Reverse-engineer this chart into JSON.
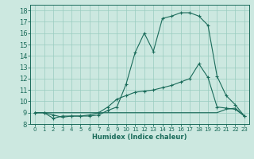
{
  "xlabel": "Humidex (Indice chaleur)",
  "xlim": [
    -0.5,
    23.5
  ],
  "ylim": [
    8,
    18.5
  ],
  "xticks": [
    0,
    1,
    2,
    3,
    4,
    5,
    6,
    7,
    8,
    9,
    10,
    11,
    12,
    13,
    14,
    15,
    16,
    17,
    18,
    19,
    20,
    21,
    22,
    23
  ],
  "yticks": [
    8,
    9,
    10,
    11,
    12,
    13,
    14,
    15,
    16,
    17,
    18
  ],
  "bg_color": "#cce8e0",
  "grid_color": "#99ccc0",
  "line_color": "#1a6b5a",
  "line1_x": [
    0,
    1,
    2,
    3,
    4,
    5,
    6,
    7,
    8,
    9,
    10,
    11,
    12,
    13,
    14,
    15,
    16,
    17,
    18,
    19,
    20,
    21,
    22,
    23
  ],
  "line1_y": [
    9.0,
    9.0,
    8.8,
    8.6,
    8.7,
    8.7,
    8.7,
    8.8,
    9.2,
    9.5,
    11.5,
    14.3,
    16.0,
    14.4,
    17.3,
    17.5,
    17.8,
    17.8,
    17.5,
    16.7,
    12.2,
    10.5,
    9.7,
    8.7
  ],
  "line2_x": [
    0,
    1,
    2,
    3,
    4,
    5,
    6,
    7,
    8,
    9,
    10,
    11,
    12,
    13,
    14,
    15,
    16,
    17,
    18,
    19,
    20,
    21,
    22,
    23
  ],
  "line2_y": [
    9.0,
    9.0,
    8.5,
    8.7,
    8.7,
    8.7,
    8.8,
    9.0,
    9.5,
    10.2,
    10.5,
    10.8,
    10.9,
    11.0,
    11.2,
    11.4,
    11.7,
    12.0,
    13.3,
    12.1,
    9.5,
    9.4,
    9.3,
    8.7
  ],
  "line3_x": [
    0,
    1,
    2,
    3,
    4,
    5,
    6,
    7,
    8,
    9,
    10,
    11,
    12,
    13,
    14,
    15,
    16,
    17,
    18,
    19,
    20,
    21,
    22,
    23
  ],
  "line3_y": [
    9.0,
    9.0,
    9.0,
    9.0,
    9.0,
    9.0,
    9.0,
    9.0,
    9.0,
    9.0,
    9.0,
    9.0,
    9.0,
    9.0,
    9.0,
    9.0,
    9.0,
    9.0,
    9.0,
    9.0,
    9.0,
    9.3,
    9.4,
    8.7
  ],
  "tick_fontsize": 5,
  "xlabel_fontsize": 6
}
